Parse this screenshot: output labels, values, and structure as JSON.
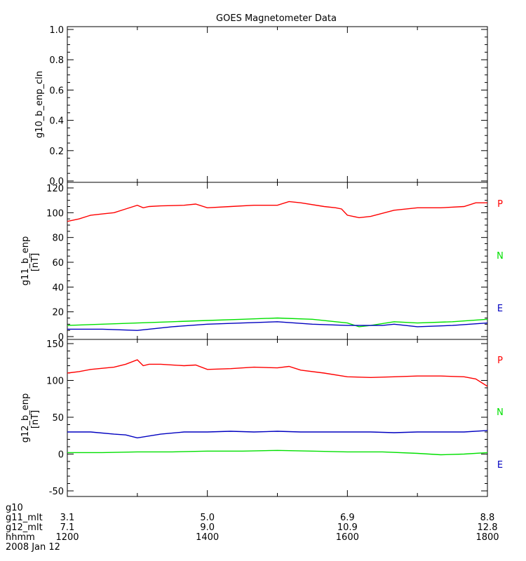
{
  "title": "GOES Magnetometer Data",
  "colors": {
    "P": "#ff0000",
    "N": "#00e000",
    "E": "#0000c0",
    "axis": "#000000"
  },
  "chart_data": [
    {
      "type": "line",
      "ylabel": "g10_b_enp_cln",
      "unit": "",
      "ylim": [
        0,
        1.0
      ],
      "yticks": [
        "0.0",
        "0.2",
        "0.4",
        "0.6",
        "0.8",
        "1.0"
      ],
      "ytick_values": [
        0,
        0.2,
        0.4,
        0.6,
        0.8,
        1.0
      ],
      "series": []
    },
    {
      "type": "line",
      "ylabel": "g11_b_enp",
      "unit": "[nT]",
      "ylim": [
        0,
        120
      ],
      "yticks": [
        "0",
        "20",
        "40",
        "60",
        "80",
        "100",
        "120"
      ],
      "ytick_values": [
        0,
        20,
        40,
        60,
        80,
        100,
        120
      ],
      "series": [
        {
          "name": "P",
          "color": "#ff0000",
          "x": [
            1200,
            1210,
            1220,
            1230,
            1240,
            1250,
            1300,
            1305,
            1310,
            1320,
            1340,
            1350,
            1400,
            1420,
            1440,
            1500,
            1510,
            1520,
            1540,
            1550,
            1555,
            1600,
            1610,
            1620,
            1640,
            1700,
            1720,
            1740,
            1750,
            1800
          ],
          "y": [
            93,
            95,
            98,
            99,
            100,
            103,
            106,
            104,
            105,
            105.5,
            106,
            107,
            104,
            105,
            106,
            106,
            109,
            108,
            105,
            104,
            103,
            98,
            96,
            97,
            102,
            104,
            104,
            105,
            108,
            108
          ]
        },
        {
          "name": "N",
          "color": "#00e000",
          "x": [
            1200,
            1230,
            1300,
            1330,
            1400,
            1430,
            1500,
            1530,
            1600,
            1610,
            1620,
            1640,
            1700,
            1730,
            1800
          ],
          "y": [
            9,
            10,
            11,
            12,
            13,
            14,
            15,
            14,
            11,
            8,
            9,
            12,
            11,
            12,
            14
          ]
        },
        {
          "name": "E",
          "color": "#0000c0",
          "x": [
            1200,
            1230,
            1300,
            1330,
            1400,
            1430,
            1500,
            1530,
            1600,
            1630,
            1640,
            1700,
            1730,
            1800
          ],
          "y": [
            6,
            6,
            5,
            8,
            10,
            11,
            12,
            10,
            9,
            9,
            10,
            8,
            9,
            11
          ]
        }
      ]
    },
    {
      "type": "line",
      "ylabel": "g12_b_enp",
      "unit": "[nT]",
      "ylim": [
        -55,
        150
      ],
      "yticks": [
        "-50",
        "0",
        "50",
        "100",
        "150"
      ],
      "ytick_values": [
        -50,
        0,
        50,
        100,
        150
      ],
      "series": [
        {
          "name": "P",
          "color": "#ff0000",
          "x": [
            1200,
            1210,
            1220,
            1240,
            1250,
            1300,
            1305,
            1310,
            1320,
            1340,
            1350,
            1400,
            1420,
            1440,
            1500,
            1510,
            1520,
            1540,
            1600,
            1620,
            1640,
            1700,
            1720,
            1740,
            1750,
            1800
          ],
          "y": [
            110,
            112,
            115,
            118,
            122,
            128,
            120,
            122,
            122,
            120,
            121,
            115,
            116,
            118,
            117,
            119,
            114,
            110,
            105,
            104,
            105,
            106,
            106,
            105,
            102,
            92
          ]
        },
        {
          "name": "N",
          "color": "#00e000",
          "x": [
            1200,
            1230,
            1300,
            1330,
            1400,
            1430,
            1500,
            1530,
            1600,
            1630,
            1700,
            1720,
            1740,
            1800
          ],
          "y": [
            2,
            2,
            3,
            3,
            4,
            4,
            5,
            4,
            3,
            3,
            1,
            -1,
            0,
            2
          ]
        },
        {
          "name": "E",
          "color": "#0000c0",
          "x": [
            1200,
            1220,
            1240,
            1250,
            1300,
            1320,
            1340,
            1400,
            1420,
            1440,
            1500,
            1520,
            1540,
            1600,
            1620,
            1640,
            1700,
            1720,
            1740,
            1800
          ],
          "y": [
            30,
            30,
            27,
            26,
            22,
            27,
            30,
            30,
            31,
            30,
            31,
            30,
            30,
            30,
            30,
            29,
            30,
            30,
            30,
            32
          ]
        }
      ]
    }
  ],
  "legend_labels": [
    "P",
    "N",
    "E"
  ],
  "xaxis": {
    "xlim": [
      1200,
      1800
    ],
    "rows": [
      {
        "label": "g10",
        "values": [
          "",
          "",
          "",
          ""
        ]
      },
      {
        "label": "g11_mlt",
        "values": [
          "3.1",
          "5.0",
          "6.9",
          "8.8"
        ]
      },
      {
        "label": "g12_mlt",
        "values": [
          "7.1",
          "9.0",
          "10.9",
          "12.8"
        ]
      },
      {
        "label": "hhmm",
        "values": [
          "1200",
          "1400",
          "1600",
          "1800"
        ]
      },
      {
        "label": "2008 Jan 12",
        "values": [
          "",
          "",
          "",
          ""
        ]
      }
    ],
    "major_ticks": [
      1200,
      1400,
      1600,
      1800
    ],
    "minor_ticks": [
      1300,
      1500,
      1700
    ]
  }
}
